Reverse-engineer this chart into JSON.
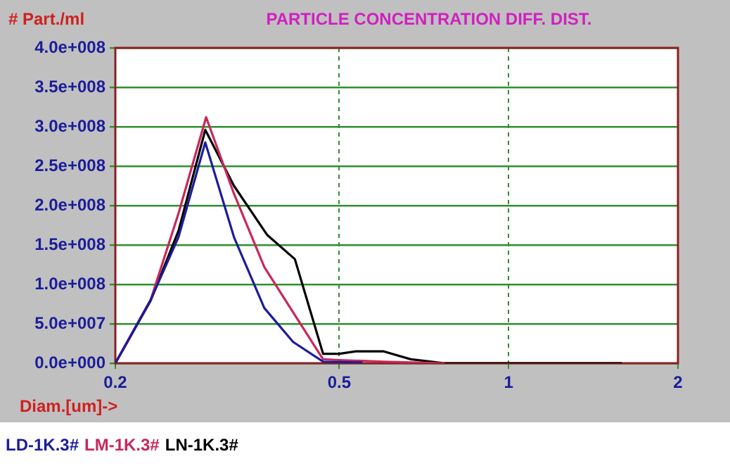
{
  "chart_data": {
    "type": "line",
    "title": "PARTICLE CONCENTRATION DIFF. DIST.",
    "xlabel": "Diam.[um]->",
    "ylabel": "# Part./ml",
    "log": "x",
    "xlim": [
      0.2,
      2
    ],
    "xticks": [
      0.2,
      0.5,
      1,
      2
    ],
    "ylim": [
      0,
      400000000
    ],
    "yticks": [
      {
        "value": 0,
        "label": "0.0e+000"
      },
      {
        "value": 50000000,
        "label": "5.0e+007"
      },
      {
        "value": 100000000,
        "label": "1.0e+008"
      },
      {
        "value": 150000000,
        "label": "1.5e+008"
      },
      {
        "value": 200000000,
        "label": "2.0e+008"
      },
      {
        "value": 250000000,
        "label": "2.5e+008"
      },
      {
        "value": 300000000,
        "label": "3.0e+008"
      },
      {
        "value": 350000000,
        "label": "3.5e+008"
      },
      {
        "value": 400000000,
        "label": "4.0e+008"
      }
    ],
    "grid": true,
    "legend": "bottom",
    "marker": "none",
    "line_style": "solid",
    "series": [
      {
        "name": "LD-1K.3#",
        "color": "#1c1c9a",
        "x": [
          0.2,
          0.231,
          0.259,
          0.289,
          0.325,
          0.368,
          0.414,
          0.468,
          0.55
        ],
        "values": [
          0,
          80000000,
          160000000,
          280000000,
          160000000,
          70000000,
          27000000,
          2000000,
          1000000
        ]
      },
      {
        "name": "LM-1K.3#",
        "color": "#c8285a",
        "x": [
          0.2,
          0.231,
          0.259,
          0.29,
          0.325,
          0.368,
          0.417,
          0.468,
          0.5,
          0.6,
          0.77
        ],
        "values": [
          0,
          80000000,
          190000000,
          312000000,
          215000000,
          122000000,
          61000000,
          5000000,
          4000000,
          2000000,
          0
        ]
      },
      {
        "name": "LN-1K.3#",
        "color": "#000000",
        "x": [
          0.2,
          0.231,
          0.259,
          0.289,
          0.325,
          0.372,
          0.417,
          0.468,
          0.5,
          0.535,
          0.6,
          0.67,
          0.77,
          1.59
        ],
        "values": [
          0,
          79000000,
          168000000,
          296000000,
          225000000,
          163000000,
          132000000,
          12000000,
          12000000,
          15000000,
          15000000,
          5000000,
          0,
          0
        ]
      }
    ]
  }
}
